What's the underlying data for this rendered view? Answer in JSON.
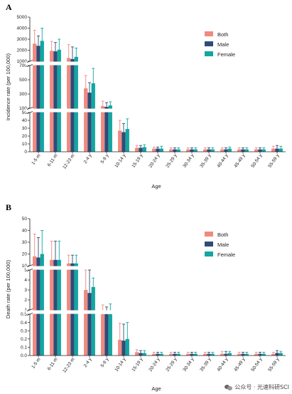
{
  "chart_data": [
    {
      "type": "bar",
      "panel": "A",
      "categories": [
        "1-5 m",
        "6-11 m",
        "12-23 m",
        "2-4 y",
        "5-9 y",
        "10-14 y",
        "15-19 y",
        "20-24 y",
        "25-29 y",
        "30-34 y",
        "35-39 y",
        "40-44 y",
        "45-49 y",
        "50-54 y",
        "55-59 y"
      ],
      "xlabel": "Age",
      "ylabel": "Incidence rate (per 100,000)",
      "ylim": [
        0,
        5000
      ],
      "broken_axis_segments": [
        {
          "range": [
            0,
            50
          ],
          "ticks": [
            0,
            10,
            20,
            30,
            40,
            50
          ]
        },
        {
          "range": [
            100,
            700
          ],
          "ticks": [
            100,
            300,
            500,
            700
          ]
        },
        {
          "range": [
            1000,
            5000
          ],
          "ticks": [
            1000,
            2000,
            3000,
            4000,
            5000
          ]
        }
      ],
      "series": [
        {
          "name": "Both",
          "color": "#f08a80",
          "values": [
            2600,
            1950,
            1300,
            380,
            130,
            27,
            5,
            4,
            3,
            3,
            3,
            3,
            3,
            3,
            4
          ],
          "err": [
            3800,
            2800,
            2500,
            560,
            200,
            40,
            8,
            6,
            5,
            5,
            5,
            5,
            5,
            5,
            7
          ]
        },
        {
          "name": "Male",
          "color": "#2e4c78",
          "values": [
            2400,
            1900,
            1200,
            320,
            120,
            25,
            5,
            4,
            3,
            3,
            3,
            3,
            3,
            3,
            4
          ],
          "err": [
            3300,
            2700,
            2300,
            460,
            180,
            36,
            8,
            6,
            5,
            5,
            5,
            5,
            5,
            5,
            8
          ]
        },
        {
          "name": "Female",
          "color": "#13a6a0",
          "values": [
            2850,
            2050,
            1400,
            450,
            140,
            29,
            6,
            4,
            3,
            3,
            3,
            4,
            3,
            3,
            4
          ],
          "err": [
            4000,
            3000,
            2200,
            660,
            190,
            42,
            9,
            7,
            5,
            5,
            5,
            6,
            5,
            5,
            7
          ]
        }
      ],
      "legend_position": "top-right"
    },
    {
      "type": "bar",
      "panel": "B",
      "categories": [
        "1-5 m",
        "6-11 m",
        "12-23 m",
        "2-4 y",
        "5-9 y",
        "10-14 y",
        "15-19 y",
        "20-24 y",
        "25-29 y",
        "30-34 y",
        "35-39 y",
        "40-44 y",
        "45-49 y",
        "50-54 y",
        "55-59 y"
      ],
      "xlabel": "Age",
      "ylabel": "Death rate (per 100,000)",
      "ylim": [
        0,
        50
      ],
      "broken_axis_segments": [
        {
          "range": [
            0,
            0.5
          ],
          "ticks": [
            0.0,
            0.1,
            0.2,
            0.3,
            0.4,
            0.5
          ]
        },
        {
          "range": [
            1,
            5
          ],
          "ticks": [
            1,
            2,
            3,
            4,
            5
          ]
        },
        {
          "range": [
            10,
            50
          ],
          "ticks": [
            10,
            20,
            30,
            40,
            50
          ]
        }
      ],
      "series": [
        {
          "name": "Both",
          "color": "#f08a80",
          "values": [
            18,
            15,
            12,
            3.0,
            0.75,
            0.19,
            0.04,
            0.02,
            0.02,
            0.02,
            0.02,
            0.02,
            0.02,
            0.02,
            0.02
          ],
          "err": [
            37,
            31,
            19,
            5.0,
            1.5,
            0.39,
            0.07,
            0.04,
            0.04,
            0.04,
            0.04,
            0.05,
            0.04,
            0.04,
            0.04
          ]
        },
        {
          "name": "Male",
          "color": "#2e4c78",
          "values": [
            17,
            15,
            12,
            2.7,
            0.7,
            0.18,
            0.03,
            0.02,
            0.02,
            0.02,
            0.02,
            0.02,
            0.02,
            0.02,
            0.03
          ],
          "err": [
            34,
            31,
            19,
            5.0,
            1.3,
            0.38,
            0.06,
            0.04,
            0.04,
            0.04,
            0.04,
            0.05,
            0.04,
            0.04,
            0.06
          ]
        },
        {
          "name": "Female",
          "color": "#13a6a0",
          "values": [
            20,
            15,
            12,
            3.3,
            0.8,
            0.2,
            0.03,
            0.02,
            0.02,
            0.02,
            0.02,
            0.03,
            0.02,
            0.02,
            0.03
          ],
          "err": [
            40,
            31,
            19,
            4.2,
            1.6,
            0.4,
            0.06,
            0.04,
            0.04,
            0.04,
            0.04,
            0.05,
            0.04,
            0.04,
            0.05
          ]
        }
      ],
      "legend_position": "top-right"
    }
  ],
  "watermark": "公众号 · 光速科研SCI"
}
